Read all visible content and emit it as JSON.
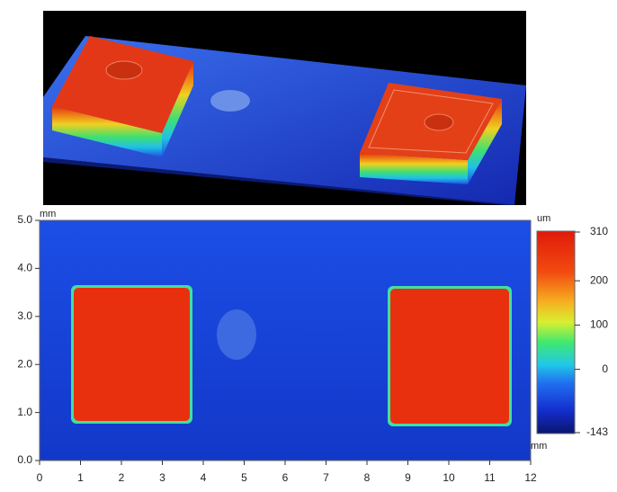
{
  "map": {
    "x_unit": "mm",
    "y_unit": "mm",
    "xlim": [
      0,
      12
    ],
    "ylim": [
      0,
      5
    ],
    "xticks": [
      0,
      1,
      2,
      3,
      4,
      5,
      6,
      7,
      8,
      9,
      10,
      11,
      12
    ],
    "yticks": [
      {
        "value": 0,
        "label": "0.0"
      },
      {
        "value": 1,
        "label": "1.0"
      },
      {
        "value": 2,
        "label": "2.0"
      },
      {
        "value": 3,
        "label": "3.0"
      },
      {
        "value": 4,
        "label": "4.0"
      },
      {
        "value": 5,
        "label": "5.0"
      }
    ]
  },
  "colorbar": {
    "unit": "um",
    "lim": [
      -143,
      310
    ],
    "ticks": [
      310,
      200,
      100,
      0,
      -143
    ]
  }
}
